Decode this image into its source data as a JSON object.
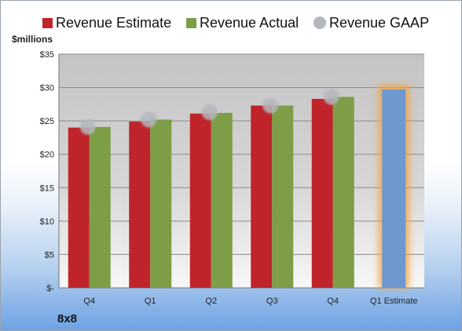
{
  "chart_data": {
    "type": "bar",
    "title": "",
    "ylabel": "$millions",
    "categories": [
      "Q4",
      "Q1",
      "Q2",
      "Q3",
      "Q4",
      "Q1 Estimate"
    ],
    "ylim": [
      0,
      35
    ],
    "yticks": [
      0,
      5,
      10,
      15,
      20,
      25,
      30,
      35
    ],
    "ytick_labels": [
      "$-",
      "$5",
      "$10",
      "$15",
      "$20",
      "$25",
      "$30",
      "$35"
    ],
    "series": [
      {
        "name": "Revenue Estimate",
        "type": "bar",
        "color": "#c0242b",
        "values": [
          24.0,
          24.9,
          26.1,
          27.3,
          28.3,
          null
        ]
      },
      {
        "name": "Revenue Actual",
        "type": "bar",
        "color": "#7d9e46",
        "values": [
          24.1,
          25.2,
          26.2,
          27.3,
          28.6,
          null
        ]
      },
      {
        "name": "Revenue GAAP",
        "type": "marker",
        "color": "#b4b7bd",
        "values": [
          24.1,
          25.2,
          26.3,
          27.3,
          28.6,
          null
        ]
      },
      {
        "name": "",
        "type": "bar",
        "color": "#6e98cf",
        "highlight": "#f3a23c",
        "values": [
          null,
          null,
          null,
          null,
          null,
          29.7
        ]
      }
    ],
    "legend_position": "top",
    "grid": true
  },
  "company": "8x8"
}
